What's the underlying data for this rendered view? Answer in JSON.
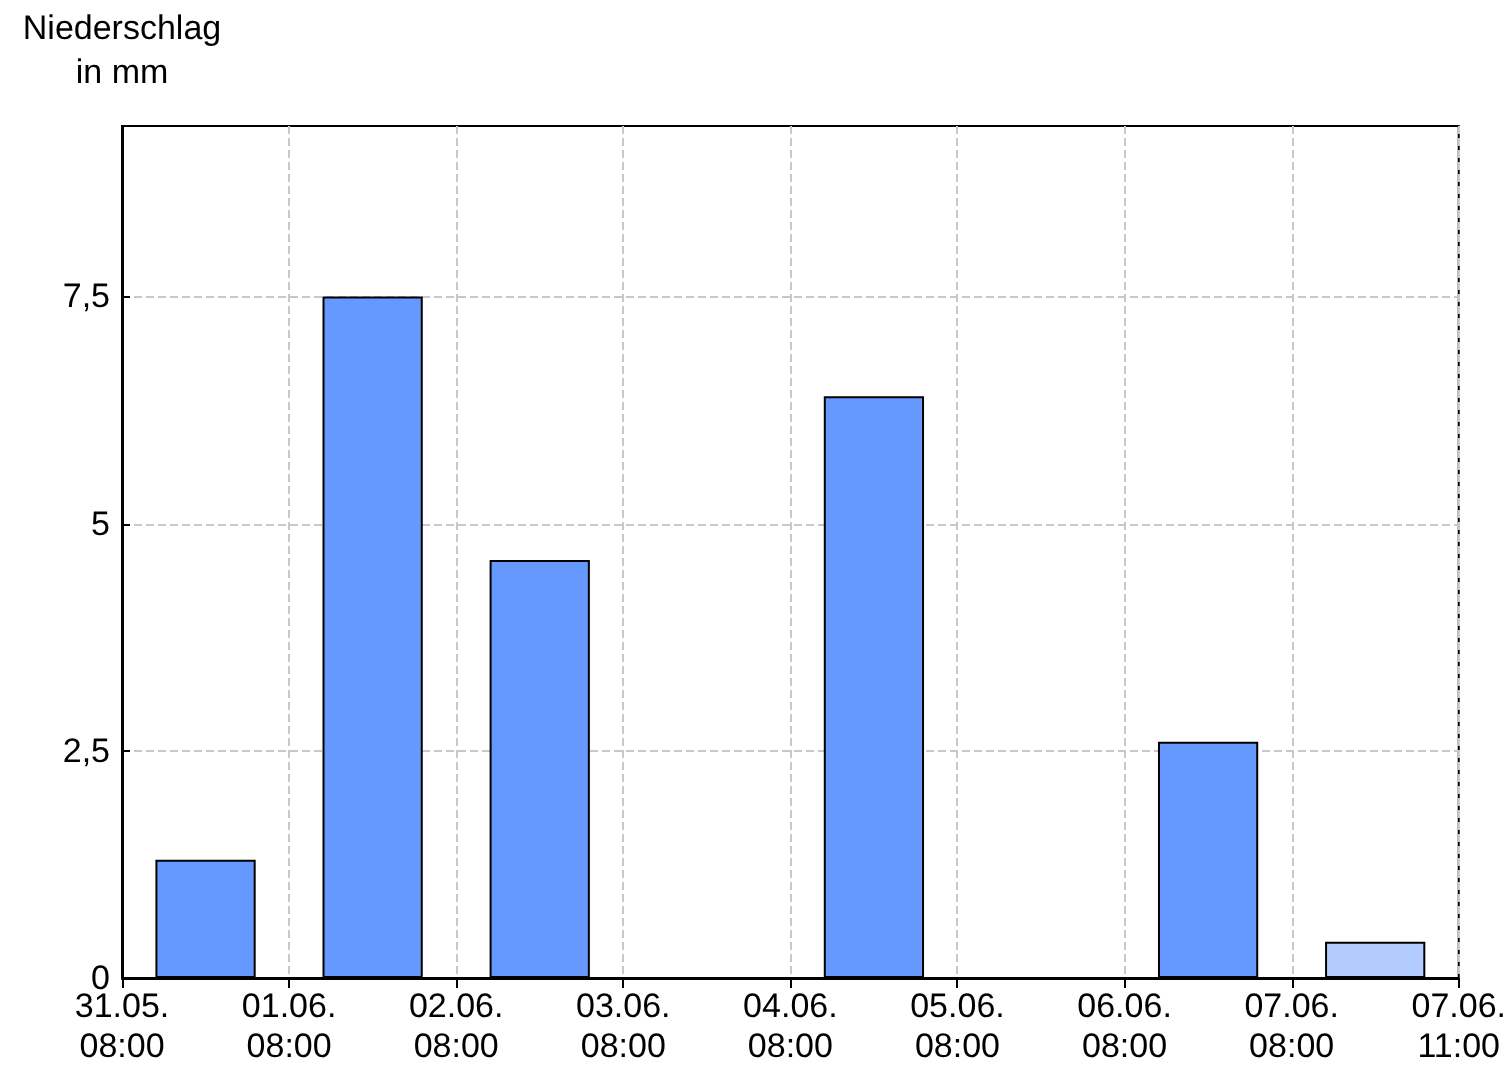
{
  "chart_data": {
    "type": "bar",
    "ylabel": "Niederschlag\nin mm",
    "categories": [
      "31.05.\n08:00",
      "01.06.\n08:00",
      "02.06.\n08:00",
      "03.06.\n08:00",
      "04.06.\n08:00",
      "05.06.\n08:00",
      "06.06.\n08:00",
      "07.06.\n08:00",
      "07.06.\n11:00"
    ],
    "values": [
      1.3,
      7.5,
      4.6,
      null,
      6.4,
      null,
      2.6,
      0.4,
      null
    ],
    "colors": [
      "#6699ff",
      "#6699ff",
      "#6699ff",
      null,
      "#6699ff",
      null,
      "#6699ff",
      "#b3ccff",
      null
    ],
    "ylim": [
      0,
      9.375
    ],
    "yticks": [
      0,
      {
        "value": 2.5,
        "label": "2,5"
      },
      5,
      {
        "value": 7.5,
        "label": "7,5"
      }
    ],
    "grid": true
  }
}
